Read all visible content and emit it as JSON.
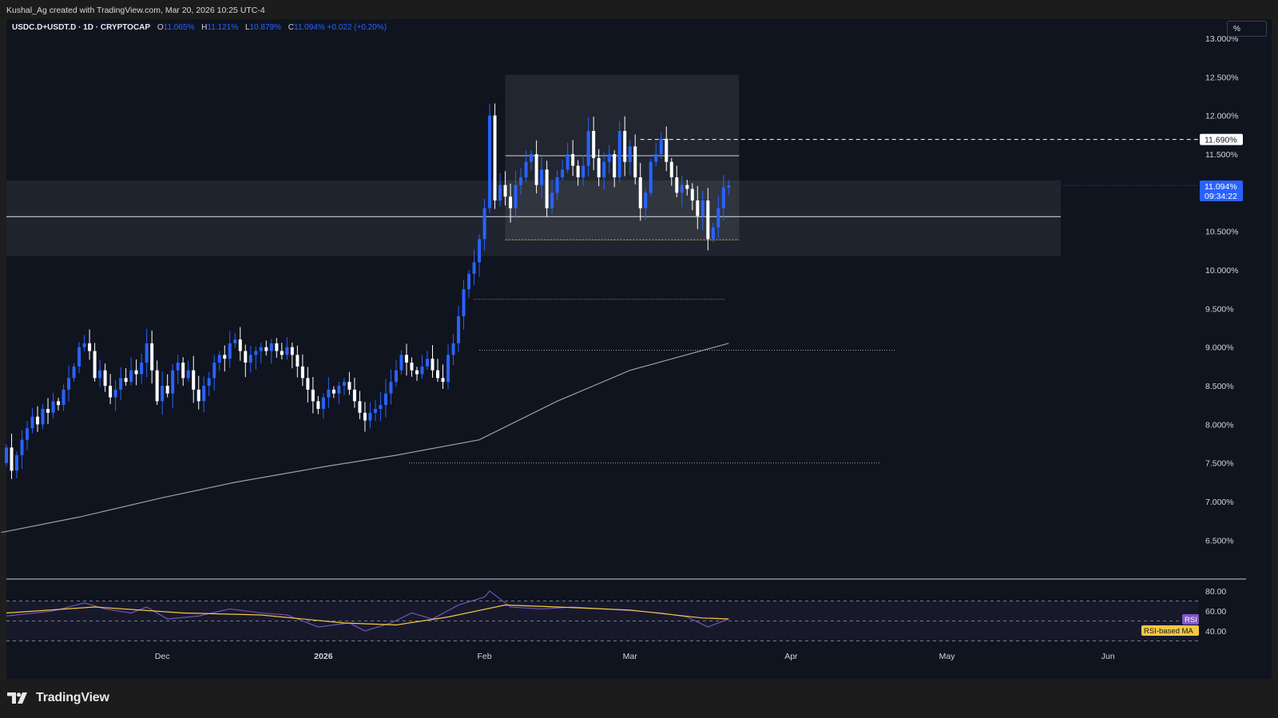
{
  "header": {
    "credit": "Kushal_Ag created with TradingView.com, Mar 20, 2026 10:25 UTC-4"
  },
  "legend": {
    "symbol": "USDC.D+USDT.D · 1D · CRYPTOCAP",
    "o_label": "O",
    "o_value": "11.065%",
    "h_label": "H",
    "h_value": "11.121%",
    "l_label": "L",
    "l_value": "10.879%",
    "c_label": "C",
    "c_value": "11.094%",
    "change": "+0.022 (+0.20%)"
  },
  "scale_button": "%",
  "brand": {
    "name": "TradingView"
  },
  "colors": {
    "background": "#0f141f",
    "up": "#2962ff",
    "down": "#ffffff",
    "rsi_line": "#7e57c2",
    "rsi_ma": "#f5c842",
    "ma_line": "#9aa0aa"
  },
  "price_axis": {
    "ticks": [
      "13.000%",
      "12.500%",
      "12.000%",
      "11.500%",
      "10.500%",
      "10.000%",
      "9.500%",
      "9.000%",
      "8.500%",
      "8.000%",
      "7.500%",
      "7.000%",
      "6.500%"
    ],
    "tick_values": [
      13.0,
      12.5,
      12.0,
      11.5,
      10.5,
      10.0,
      9.5,
      9.0,
      8.5,
      8.0,
      7.5,
      7.0,
      6.5
    ],
    "marked_level": "11.690%",
    "last_price": "11.094%",
    "countdown": "09:34:22"
  },
  "rsi_axis": {
    "ticks": [
      "80.00",
      "60.00",
      "40.00"
    ],
    "tick_values": [
      80,
      60,
      40
    ],
    "rsi_tag": "RSI",
    "ma_tag": "RSI-based MA"
  },
  "time_axis": {
    "labels": [
      "Dec",
      "2026",
      "Feb",
      "Mar",
      "Apr",
      "May",
      "Jun"
    ]
  },
  "chart_data": {
    "type": "candlestick",
    "title": "USDC.D+USDT.D · 1D · CRYPTOCAP",
    "ylabel": "%",
    "ylim": [
      6.1,
      13.05
    ],
    "x_range": [
      "2025-11-01",
      "2026-06-10"
    ],
    "series": [
      {
        "name": "",
        "points": [
          [
            "2025-11-01",
            7.5,
            7.7
          ],
          [
            "2025-11-02",
            7.7,
            7.4
          ],
          [
            "2025-11-03",
            7.4,
            7.6
          ],
          [
            "2025-11-04",
            7.6,
            7.8
          ],
          [
            "2025-11-05",
            7.8,
            7.95
          ],
          [
            "2025-11-06",
            7.95,
            8.1
          ],
          [
            "2025-11-07",
            8.1,
            8.0
          ],
          [
            "2025-11-08",
            8.0,
            8.2
          ],
          [
            "2025-11-09",
            8.2,
            8.15
          ],
          [
            "2025-11-10",
            8.15,
            8.3
          ],
          [
            "2025-11-11",
            8.3,
            8.25
          ],
          [
            "2025-11-12",
            8.25,
            8.45
          ],
          [
            "2025-11-13",
            8.45,
            8.6
          ],
          [
            "2025-11-14",
            8.6,
            8.75
          ],
          [
            "2025-11-15",
            8.75,
            9.0
          ],
          [
            "2025-11-16",
            9.0,
            9.05
          ],
          [
            "2025-11-17",
            9.05,
            8.95
          ],
          [
            "2025-11-18",
            8.95,
            8.6
          ],
          [
            "2025-11-19",
            8.6,
            8.7
          ],
          [
            "2025-11-20",
            8.7,
            8.5
          ],
          [
            "2025-11-21",
            8.5,
            8.35
          ],
          [
            "2025-11-22",
            8.35,
            8.45
          ],
          [
            "2025-11-23",
            8.45,
            8.6
          ],
          [
            "2025-11-24",
            8.6,
            8.55
          ],
          [
            "2025-11-25",
            8.55,
            8.7
          ],
          [
            "2025-11-26",
            8.7,
            8.65
          ],
          [
            "2025-11-27",
            8.65,
            8.8
          ],
          [
            "2025-11-28",
            8.8,
            9.05
          ],
          [
            "2025-11-29",
            9.05,
            8.7
          ],
          [
            "2025-11-30",
            8.7,
            8.3
          ],
          [
            "2025-12-01",
            8.3,
            8.5
          ],
          [
            "2025-12-02",
            8.5,
            8.4
          ],
          [
            "2025-12-03",
            8.4,
            8.7
          ],
          [
            "2025-12-04",
            8.7,
            8.8
          ],
          [
            "2025-12-05",
            8.8,
            8.6
          ],
          [
            "2025-12-06",
            8.6,
            8.7
          ],
          [
            "2025-12-07",
            8.7,
            8.45
          ],
          [
            "2025-12-08",
            8.45,
            8.3
          ],
          [
            "2025-12-09",
            8.3,
            8.5
          ],
          [
            "2025-12-10",
            8.5,
            8.6
          ],
          [
            "2025-12-11",
            8.6,
            8.8
          ],
          [
            "2025-12-12",
            8.8,
            8.9
          ],
          [
            "2025-12-13",
            8.9,
            8.85
          ],
          [
            "2025-12-14",
            8.85,
            9.05
          ],
          [
            "2025-12-15",
            9.05,
            9.1
          ],
          [
            "2025-12-16",
            9.1,
            8.95
          ],
          [
            "2025-12-17",
            8.95,
            8.8
          ],
          [
            "2025-12-18",
            8.8,
            8.9
          ],
          [
            "2025-12-19",
            8.9,
            8.95
          ],
          [
            "2025-12-20",
            8.95,
            9.0
          ],
          [
            "2025-12-21",
            9.0,
            8.95
          ],
          [
            "2025-12-22",
            8.95,
            9.05
          ],
          [
            "2025-12-23",
            9.05,
            8.95
          ],
          [
            "2025-12-24",
            8.95,
            8.9
          ],
          [
            "2025-12-25",
            8.9,
            9.0
          ],
          [
            "2025-12-26",
            9.0,
            8.9
          ],
          [
            "2025-12-27",
            8.9,
            8.75
          ],
          [
            "2025-12-28",
            8.75,
            8.6
          ],
          [
            "2025-12-29",
            8.6,
            8.45
          ],
          [
            "2025-12-30",
            8.45,
            8.3
          ],
          [
            "2025-12-31",
            8.3,
            8.2
          ],
          [
            "2026-01-01",
            8.2,
            8.35
          ],
          [
            "2026-01-02",
            8.35,
            8.45
          ],
          [
            "2026-01-03",
            8.45,
            8.4
          ],
          [
            "2026-01-04",
            8.4,
            8.5
          ],
          [
            "2026-01-05",
            8.5,
            8.55
          ],
          [
            "2026-01-06",
            8.55,
            8.45
          ],
          [
            "2026-01-07",
            8.45,
            8.3
          ],
          [
            "2026-01-08",
            8.3,
            8.15
          ],
          [
            "2026-01-09",
            8.15,
            8.05
          ],
          [
            "2026-01-10",
            8.05,
            8.15
          ],
          [
            "2026-01-11",
            8.15,
            8.2
          ],
          [
            "2026-01-12",
            8.2,
            8.25
          ],
          [
            "2026-01-13",
            8.25,
            8.4
          ],
          [
            "2026-01-14",
            8.4,
            8.55
          ],
          [
            "2026-01-15",
            8.55,
            8.7
          ],
          [
            "2026-01-16",
            8.7,
            8.9
          ],
          [
            "2026-01-17",
            8.9,
            8.8
          ],
          [
            "2026-01-18",
            8.8,
            8.7
          ],
          [
            "2026-01-19",
            8.7,
            8.65
          ],
          [
            "2026-01-20",
            8.65,
            8.75
          ],
          [
            "2026-01-21",
            8.75,
            8.85
          ],
          [
            "2026-01-22",
            8.85,
            8.7
          ],
          [
            "2026-01-23",
            8.7,
            8.6
          ],
          [
            "2026-01-24",
            8.6,
            8.55
          ],
          [
            "2026-01-25",
            8.55,
            8.9
          ],
          [
            "2026-01-26",
            8.9,
            9.05
          ],
          [
            "2026-01-27",
            9.05,
            9.4
          ],
          [
            "2026-01-28",
            9.4,
            9.75
          ],
          [
            "2026-01-29",
            9.75,
            9.95
          ],
          [
            "2026-01-30",
            9.95,
            10.1
          ],
          [
            "2026-01-31",
            10.1,
            10.4
          ],
          [
            "2026-02-01",
            10.4,
            10.8
          ],
          [
            "2026-02-02",
            10.8,
            12.0
          ],
          [
            "2026-02-03",
            12.0,
            10.9
          ],
          [
            "2026-02-04",
            10.9,
            11.1
          ],
          [
            "2026-02-05",
            11.1,
            10.95
          ],
          [
            "2026-02-06",
            10.95,
            10.8
          ],
          [
            "2026-02-07",
            10.8,
            11.1
          ],
          [
            "2026-02-08",
            11.1,
            11.2
          ],
          [
            "2026-02-09",
            11.2,
            11.4
          ],
          [
            "2026-02-10",
            11.4,
            11.5
          ],
          [
            "2026-02-11",
            11.5,
            11.1
          ],
          [
            "2026-02-12",
            11.1,
            11.3
          ],
          [
            "2026-02-13",
            11.3,
            10.8
          ],
          [
            "2026-02-14",
            10.8,
            11.0
          ],
          [
            "2026-02-15",
            11.0,
            11.2
          ],
          [
            "2026-02-16",
            11.2,
            11.3
          ],
          [
            "2026-02-17",
            11.3,
            11.5
          ],
          [
            "2026-02-18",
            11.5,
            11.35
          ],
          [
            "2026-02-19",
            11.35,
            11.2
          ],
          [
            "2026-02-20",
            11.2,
            11.35
          ],
          [
            "2026-02-21",
            11.35,
            11.8
          ],
          [
            "2026-02-22",
            11.8,
            11.45
          ],
          [
            "2026-02-23",
            11.45,
            11.2
          ],
          [
            "2026-02-24",
            11.2,
            11.4
          ],
          [
            "2026-02-25",
            11.4,
            11.5
          ],
          [
            "2026-02-26",
            11.5,
            11.2
          ],
          [
            "2026-02-27",
            11.2,
            11.8
          ],
          [
            "2026-02-28",
            11.8,
            11.4
          ],
          [
            "2026-03-01",
            11.4,
            11.6
          ],
          [
            "2026-03-02",
            11.6,
            11.2
          ],
          [
            "2026-03-03",
            11.2,
            10.8
          ],
          [
            "2026-03-04",
            10.8,
            11.0
          ],
          [
            "2026-03-05",
            11.0,
            11.4
          ],
          [
            "2026-03-06",
            11.4,
            11.5
          ],
          [
            "2026-03-07",
            11.5,
            11.7
          ],
          [
            "2026-03-08",
            11.7,
            11.4
          ],
          [
            "2026-03-09",
            11.4,
            11.2
          ],
          [
            "2026-03-10",
            11.2,
            11.0
          ],
          [
            "2026-03-11",
            11.0,
            11.1
          ],
          [
            "2026-03-12",
            11.1,
            11.05
          ],
          [
            "2026-03-13",
            11.05,
            10.9
          ],
          [
            "2026-03-14",
            10.9,
            10.7
          ],
          [
            "2026-03-15",
            10.7,
            10.9
          ],
          [
            "2026-03-16",
            10.9,
            10.4
          ],
          [
            "2026-03-17",
            10.4,
            10.55
          ],
          [
            "2026-03-18",
            10.55,
            10.8
          ],
          [
            "2026-03-19",
            10.8,
            11.07
          ],
          [
            "2026-03-20",
            11.065,
            11.094
          ]
        ]
      }
    ],
    "moving_average": {
      "name": "",
      "points": [
        [
          "2025-10-31",
          6.6
        ],
        [
          "2025-11-15",
          6.8
        ],
        [
          "2025-12-01",
          7.05
        ],
        [
          "2025-12-15",
          7.25
        ],
        [
          "2026-01-01",
          7.45
        ],
        [
          "2026-01-15",
          7.6
        ],
        [
          "2026-01-31",
          7.8
        ],
        [
          "2026-02-15",
          8.3
        ],
        [
          "2026-03-01",
          8.7
        ],
        [
          "2026-03-20",
          9.05
        ]
      ]
    },
    "rsi": {
      "name": "RSI",
      "ylim": [
        30,
        90
      ],
      "points": [
        [
          "2025-11-01",
          55
        ],
        [
          "2025-11-10",
          60
        ],
        [
          "2025-11-16",
          68
        ],
        [
          "2025-11-20",
          62
        ],
        [
          "2025-11-25",
          58
        ],
        [
          "2025-11-28",
          64
        ],
        [
          "2025-12-02",
          52
        ],
        [
          "2025-12-08",
          55
        ],
        [
          "2025-12-14",
          62
        ],
        [
          "2025-12-20",
          58
        ],
        [
          "2025-12-25",
          56
        ],
        [
          "2025-12-31",
          44
        ],
        [
          "2026-01-06",
          48
        ],
        [
          "2026-01-09",
          40
        ],
        [
          "2026-01-14",
          48
        ],
        [
          "2026-01-18",
          58
        ],
        [
          "2026-01-22",
          52
        ],
        [
          "2026-01-27",
          66
        ],
        [
          "2026-02-01",
          74
        ],
        [
          "2026-02-02",
          80
        ],
        [
          "2026-02-06",
          64
        ],
        [
          "2026-02-12",
          62
        ],
        [
          "2026-02-18",
          64
        ],
        [
          "2026-02-24",
          62
        ],
        [
          "2026-03-02",
          60
        ],
        [
          "2026-03-07",
          58
        ],
        [
          "2026-03-12",
          54
        ],
        [
          "2026-03-16",
          44
        ],
        [
          "2026-03-20",
          52
        ]
      ]
    },
    "rsi_ma": {
      "name": "RSI-based MA",
      "points": [
        [
          "2025-11-01",
          58
        ],
        [
          "2025-11-18",
          64
        ],
        [
          "2025-12-05",
          58
        ],
        [
          "2025-12-20",
          56
        ],
        [
          "2026-01-05",
          48
        ],
        [
          "2026-01-15",
          46
        ],
        [
          "2026-01-25",
          54
        ],
        [
          "2026-02-05",
          66
        ],
        [
          "2026-02-15",
          64
        ],
        [
          "2026-03-01",
          61
        ],
        [
          "2026-03-15",
          53
        ],
        [
          "2026-03-20",
          52
        ]
      ]
    },
    "levels": [
      {
        "price": 11.69,
        "label": "11.690%"
      },
      {
        "price": 10.69,
        "label": ""
      },
      {
        "price": 9.62,
        "label": ""
      },
      {
        "price": 8.96,
        "label": ""
      },
      {
        "price": 7.5,
        "label": ""
      }
    ]
  }
}
